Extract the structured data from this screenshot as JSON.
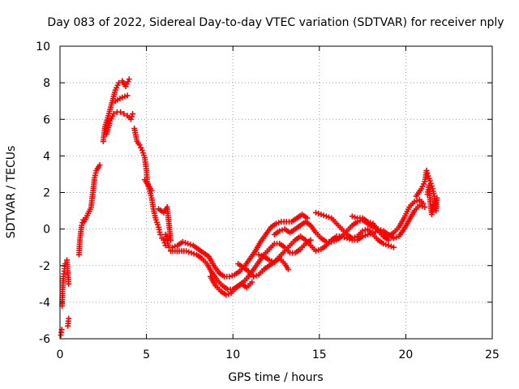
{
  "chart_data": {
    "type": "scatter",
    "title": "Day 083 of 2022, Sidereal Day-to-day VTEC variation (SDTVAR) for receiver nply",
    "xlabel": "GPS time / hours",
    "ylabel": "SDTVAR / TECUs",
    "xlim": [
      0,
      25
    ],
    "ylim": [
      -6,
      10
    ],
    "xticks": [
      0,
      5,
      10,
      15,
      20,
      25
    ],
    "yticks": [
      -6,
      -4,
      -2,
      0,
      2,
      4,
      6,
      8,
      10
    ],
    "grid": true,
    "marker": "+",
    "series_color": "#ff0000",
    "series": [
      {
        "name": "SDTVAR",
        "points": [
          [
            0.05,
            -5.8
          ],
          [
            0.1,
            -5.5
          ],
          [
            0.12,
            -4.2
          ],
          [
            0.15,
            -3.3
          ],
          [
            0.2,
            -2.6
          ],
          [
            0.25,
            -2.3
          ],
          [
            0.3,
            -1.9
          ],
          [
            0.4,
            -1.7
          ],
          [
            0.45,
            -2.4
          ],
          [
            0.5,
            -3.0
          ],
          [
            0.5,
            -4.9
          ],
          [
            0.45,
            -5.3
          ],
          [
            1.1,
            -1.4
          ],
          [
            1.15,
            -0.6
          ],
          [
            1.25,
            0.2
          ],
          [
            1.35,
            0.5
          ],
          [
            1.4,
            0.4
          ],
          [
            1.8,
            1.2
          ],
          [
            1.9,
            2.0
          ],
          [
            2.0,
            2.8
          ],
          [
            2.1,
            3.2
          ],
          [
            2.3,
            3.5
          ],
          [
            2.5,
            4.8
          ],
          [
            2.6,
            5.6
          ],
          [
            2.8,
            6.2
          ],
          [
            3.0,
            6.9
          ],
          [
            3.2,
            7.6
          ],
          [
            3.4,
            8.0
          ],
          [
            3.6,
            8.1
          ],
          [
            3.8,
            7.8
          ],
          [
            4.0,
            8.2
          ],
          [
            2.7,
            5.2
          ],
          [
            2.9,
            5.9
          ],
          [
            3.1,
            6.3
          ],
          [
            3.3,
            6.4
          ],
          [
            3.5,
            6.4
          ],
          [
            3.7,
            6.3
          ],
          [
            3.9,
            6.2
          ],
          [
            4.1,
            6.0
          ],
          [
            4.2,
            6.3
          ],
          [
            3.2,
            7.0
          ],
          [
            3.6,
            7.2
          ],
          [
            3.9,
            7.3
          ],
          [
            4.3,
            5.5
          ],
          [
            4.45,
            4.8
          ],
          [
            4.6,
            4.6
          ],
          [
            4.75,
            4.3
          ],
          [
            4.9,
            3.9
          ],
          [
            5.0,
            3.2
          ],
          [
            5.05,
            2.6
          ],
          [
            5.15,
            2.2
          ],
          [
            5.3,
            1.7
          ],
          [
            5.4,
            1.1
          ],
          [
            5.55,
            0.5
          ],
          [
            5.7,
            0.1
          ],
          [
            5.8,
            -0.3
          ],
          [
            5.9,
            -0.5
          ],
          [
            6.0,
            -0.6
          ],
          [
            6.1,
            -0.9
          ],
          [
            4.9,
            2.7
          ],
          [
            5.3,
            2.1
          ],
          [
            5.7,
            1.1
          ],
          [
            6.0,
            0.9
          ],
          [
            6.2,
            1.2
          ],
          [
            6.3,
            0.3
          ],
          [
            6.4,
            -0.6
          ],
          [
            6.1,
            -0.3
          ],
          [
            6.3,
            -1.0
          ],
          [
            6.5,
            -1.0
          ],
          [
            6.8,
            -0.9
          ],
          [
            7.1,
            -0.7
          ],
          [
            7.4,
            -0.8
          ],
          [
            7.7,
            -0.9
          ],
          [
            8.0,
            -1.1
          ],
          [
            8.3,
            -1.3
          ],
          [
            8.6,
            -1.5
          ],
          [
            8.9,
            -2.0
          ],
          [
            9.2,
            -2.4
          ],
          [
            9.5,
            -2.6
          ],
          [
            9.8,
            -2.6
          ],
          [
            10.1,
            -2.5
          ],
          [
            10.4,
            -2.3
          ],
          [
            10.7,
            -2.0
          ],
          [
            11.0,
            -1.6
          ],
          [
            11.3,
            -1.2
          ],
          [
            11.6,
            -0.7
          ],
          [
            11.9,
            -0.3
          ],
          [
            12.2,
            0.1
          ],
          [
            12.5,
            0.3
          ],
          [
            12.8,
            0.4
          ],
          [
            13.1,
            0.4
          ],
          [
            13.4,
            0.4
          ],
          [
            13.7,
            0.6
          ],
          [
            14.0,
            0.8
          ],
          [
            14.3,
            0.6
          ],
          [
            6.4,
            -1.2
          ],
          [
            6.9,
            -1.2
          ],
          [
            7.3,
            -1.2
          ],
          [
            7.6,
            -1.3
          ],
          [
            7.9,
            -1.4
          ],
          [
            8.2,
            -1.6
          ],
          [
            8.5,
            -1.9
          ],
          [
            8.8,
            -2.4
          ],
          [
            9.1,
            -2.8
          ],
          [
            9.4,
            -3.1
          ],
          [
            9.7,
            -3.3
          ],
          [
            10.0,
            -3.3
          ],
          [
            10.3,
            -3.1
          ],
          [
            10.6,
            -2.9
          ],
          [
            10.9,
            -2.6
          ],
          [
            11.2,
            -2.2
          ],
          [
            11.5,
            -1.8
          ],
          [
            11.8,
            -1.4
          ],
          [
            12.1,
            -1.1
          ],
          [
            12.4,
            -0.8
          ],
          [
            12.7,
            -0.8
          ],
          [
            13.0,
            -1.0
          ],
          [
            13.3,
            -1.3
          ],
          [
            13.6,
            -1.3
          ],
          [
            13.9,
            -1.1
          ],
          [
            14.2,
            -0.8
          ],
          [
            14.5,
            -0.6
          ],
          [
            8.7,
            -2.6
          ],
          [
            9.0,
            -3.1
          ],
          [
            9.3,
            -3.4
          ],
          [
            9.6,
            -3.6
          ],
          [
            9.9,
            -3.5
          ],
          [
            10.2,
            -3.2
          ],
          [
            10.5,
            -3.0
          ],
          [
            10.8,
            -3.2
          ],
          [
            11.1,
            -2.9
          ],
          [
            10.3,
            -1.9
          ],
          [
            10.6,
            -2.1
          ],
          [
            10.9,
            -2.3
          ],
          [
            11.2,
            -2.6
          ],
          [
            11.5,
            -2.5
          ],
          [
            11.8,
            -2.2
          ],
          [
            12.1,
            -2.0
          ],
          [
            12.4,
            -1.8
          ],
          [
            12.7,
            -1.6
          ],
          [
            13.0,
            -1.9
          ],
          [
            13.2,
            -2.2
          ],
          [
            11.5,
            -1.4
          ],
          [
            11.8,
            -1.5
          ],
          [
            12.1,
            -1.7
          ],
          [
            12.4,
            -1.8
          ],
          [
            12.7,
            -1.5
          ],
          [
            13.0,
            -1.2
          ],
          [
            13.3,
            -0.9
          ],
          [
            13.6,
            -0.6
          ],
          [
            13.9,
            -0.4
          ],
          [
            14.2,
            -0.6
          ],
          [
            14.5,
            -0.9
          ],
          [
            14.8,
            -1.2
          ],
          [
            15.1,
            -1.1
          ],
          [
            15.4,
            -0.9
          ],
          [
            15.7,
            -0.6
          ],
          [
            16.0,
            -0.4
          ],
          [
            16.3,
            -0.4
          ],
          [
            16.6,
            -0.5
          ],
          [
            16.9,
            -0.6
          ],
          [
            17.2,
            -0.6
          ],
          [
            17.5,
            -0.4
          ],
          [
            17.8,
            -0.3
          ],
          [
            18.1,
            -0.2
          ],
          [
            18.4,
            -0.1
          ],
          [
            18.7,
            -0.2
          ],
          [
            19.0,
            -0.4
          ],
          [
            19.3,
            -0.2
          ],
          [
            19.6,
            0.1
          ],
          [
            19.9,
            0.6
          ],
          [
            20.2,
            1.2
          ],
          [
            20.5,
            1.5
          ],
          [
            20.8,
            1.6
          ],
          [
            21.0,
            1.4
          ],
          [
            12.4,
            -0.3
          ],
          [
            12.7,
            -0.1
          ],
          [
            13.0,
            0.0
          ],
          [
            13.3,
            -0.2
          ],
          [
            13.6,
            0.0
          ],
          [
            13.9,
            0.2
          ],
          [
            14.2,
            0.4
          ],
          [
            14.5,
            0.2
          ],
          [
            14.8,
            -0.2
          ],
          [
            15.1,
            -0.5
          ],
          [
            15.4,
            -0.7
          ],
          [
            15.7,
            -0.7
          ],
          [
            16.0,
            -0.6
          ],
          [
            16.3,
            -0.4
          ],
          [
            16.6,
            -0.1
          ],
          [
            16.9,
            0.2
          ],
          [
            17.2,
            0.4
          ],
          [
            17.5,
            0.5
          ],
          [
            17.8,
            0.3
          ],
          [
            18.1,
            0.1
          ],
          [
            18.4,
            0.0
          ],
          [
            18.7,
            -0.1
          ],
          [
            19.0,
            -0.3
          ],
          [
            19.3,
            -0.5
          ],
          [
            19.6,
            -0.4
          ],
          [
            19.9,
            0.0
          ],
          [
            20.2,
            0.5
          ],
          [
            20.5,
            1.0
          ],
          [
            20.8,
            1.3
          ],
          [
            21.1,
            1.2
          ],
          [
            14.8,
            0.9
          ],
          [
            15.1,
            0.8
          ],
          [
            15.4,
            0.7
          ],
          [
            15.7,
            0.6
          ],
          [
            16.0,
            0.3
          ],
          [
            16.3,
            0.0
          ],
          [
            16.6,
            -0.3
          ],
          [
            16.9,
            -0.5
          ],
          [
            17.2,
            -0.4
          ],
          [
            17.5,
            -0.1
          ],
          [
            17.8,
            0.0
          ],
          [
            18.1,
            -0.3
          ],
          [
            18.4,
            -0.6
          ],
          [
            18.7,
            -0.8
          ],
          [
            19.0,
            -0.9
          ],
          [
            19.3,
            -1.0
          ],
          [
            16.9,
            0.7
          ],
          [
            17.2,
            0.6
          ],
          [
            17.5,
            0.6
          ],
          [
            17.8,
            0.4
          ],
          [
            18.1,
            0.3
          ],
          [
            18.4,
            -0.1
          ],
          [
            18.7,
            -0.4
          ],
          [
            19.0,
            -0.6
          ],
          [
            20.6,
            1.8
          ],
          [
            20.9,
            2.2
          ],
          [
            21.1,
            2.6
          ],
          [
            21.2,
            3.2
          ],
          [
            21.3,
            2.9
          ],
          [
            21.45,
            2.5
          ],
          [
            21.55,
            2.2
          ],
          [
            21.65,
            1.8
          ],
          [
            21.7,
            1.4
          ],
          [
            21.75,
            1.0
          ],
          [
            21.8,
            1.7
          ],
          [
            21.6,
            1.2
          ],
          [
            21.5,
            0.8
          ],
          [
            21.4,
            1.6
          ],
          [
            21.35,
            2.4
          ],
          [
            21.25,
            1.9
          ]
        ]
      }
    ]
  }
}
